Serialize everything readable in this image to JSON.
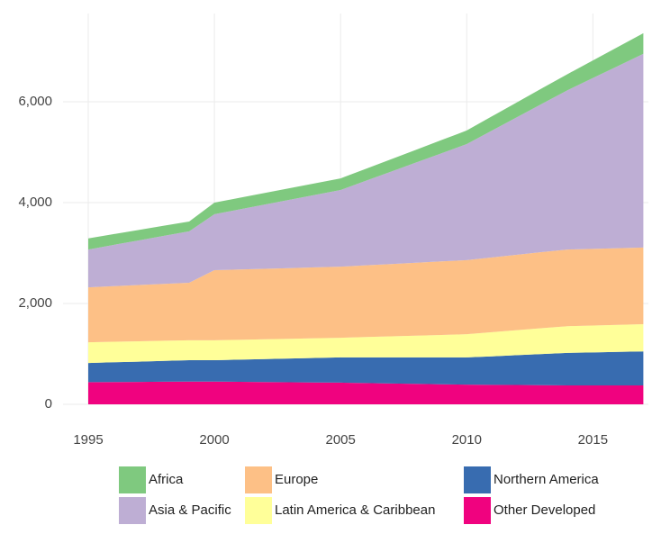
{
  "chart_data": {
    "type": "area",
    "stacked": true,
    "x": [
      1995,
      1996,
      1997,
      1998,
      1999,
      2000,
      2001,
      2002,
      2003,
      2004,
      2005,
      2006,
      2007,
      2008,
      2009,
      2010,
      2011,
      2012,
      2013,
      2014,
      2015,
      2016,
      2017
    ],
    "series": [
      {
        "name": "Africa",
        "color": "#7fc97f",
        "values": [
          220,
          214,
          208,
          201,
          195,
          230,
          230,
          230,
          230,
          230,
          230,
          238,
          246,
          254,
          262,
          270,
          283,
          295,
          308,
          320,
          350,
          380,
          410
        ]
      },
      {
        "name": "Asia & Pacific",
        "color": "#beaed4",
        "values": [
          750,
          818,
          885,
          953,
          1020,
          1110,
          1192,
          1274,
          1356,
          1438,
          1520,
          1676,
          1832,
          1988,
          2144,
          2300,
          2515,
          2730,
          2945,
          3160,
          3387,
          3613,
          3840
        ]
      },
      {
        "name": "Europe",
        "color": "#fdc086",
        "values": [
          1090,
          1103,
          1115,
          1128,
          1140,
          1390,
          1394,
          1398,
          1402,
          1406,
          1410,
          1422,
          1434,
          1446,
          1458,
          1470,
          1483,
          1495,
          1508,
          1520,
          1520,
          1520,
          1520
        ]
      },
      {
        "name": "Latin America & Caribbean",
        "color": "#ffff99",
        "values": [
          410,
          406,
          403,
          399,
          395,
          395,
          394,
          393,
          392,
          391,
          390,
          404,
          418,
          432,
          446,
          460,
          478,
          495,
          513,
          530,
          533,
          537,
          540
        ]
      },
      {
        "name": "Northern America",
        "color": "#386cb0",
        "values": [
          380,
          391,
          402,
          414,
          425,
          425,
          440,
          455,
          470,
          485,
          500,
          508,
          516,
          524,
          532,
          540,
          566,
          593,
          619,
          645,
          655,
          665,
          675
        ]
      },
      {
        "name": "Other Developed",
        "color": "#f0027f",
        "values": [
          440,
          443,
          445,
          448,
          450,
          450,
          446,
          442,
          438,
          434,
          430,
          422,
          414,
          406,
          398,
          390,
          386,
          383,
          379,
          375,
          375,
          375,
          375
        ]
      }
    ],
    "xlim": [
      1994,
      2017.2
    ],
    "xticks": [
      1995,
      2000,
      2005,
      2010,
      2015
    ],
    "ylim": [
      0,
      7750
    ],
    "yticks": [
      0,
      {
        "value": 2000,
        "label": "2,000"
      },
      {
        "value": 4000,
        "label": "4,000"
      },
      {
        "value": 6000,
        "label": "6,000"
      }
    ],
    "grid": true,
    "legend": "bottom"
  }
}
